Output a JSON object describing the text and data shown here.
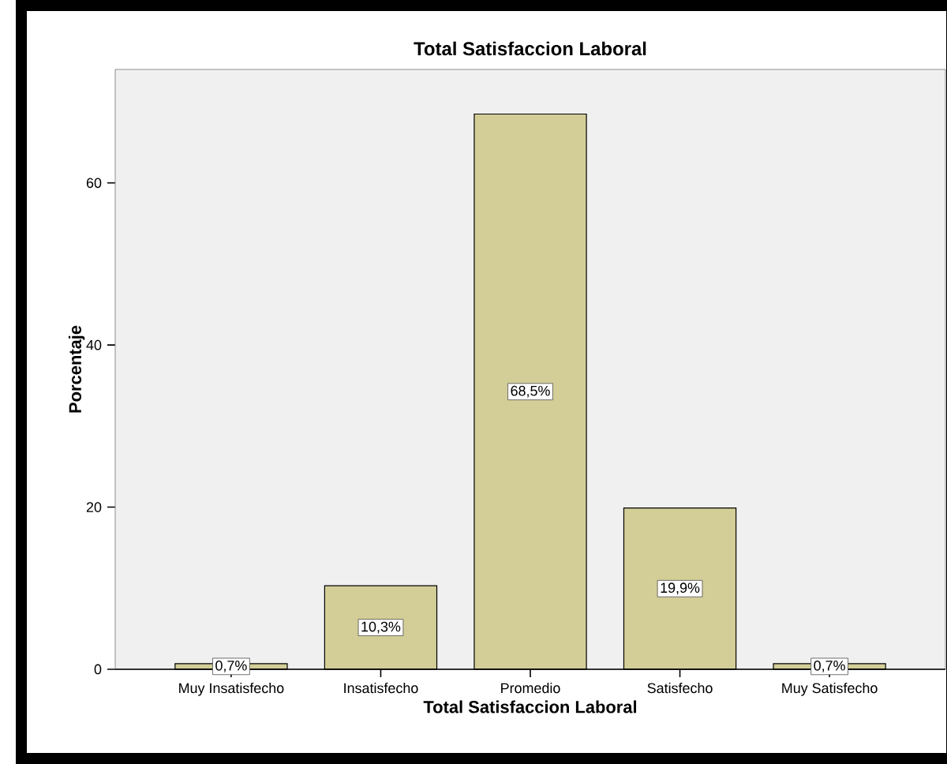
{
  "chart_data": {
    "type": "bar",
    "title": "Total Satisfaccion Laboral",
    "xlabel": "Total Satisfaccion Laboral",
    "ylabel": "Porcentaje",
    "categories": [
      "Muy Insatisfecho",
      "Insatisfecho",
      "Promedio",
      "Satisfecho",
      "Muy Satisfecho"
    ],
    "values": [
      0.7,
      10.3,
      68.5,
      19.9,
      0.7
    ],
    "value_labels": [
      "0,7%",
      "10,3%",
      "68,5%",
      "19,9%",
      "0,7%"
    ],
    "color": "#d3ce97",
    "ylim": [
      0,
      74
    ],
    "yticks": [
      0,
      20,
      40,
      60
    ]
  }
}
